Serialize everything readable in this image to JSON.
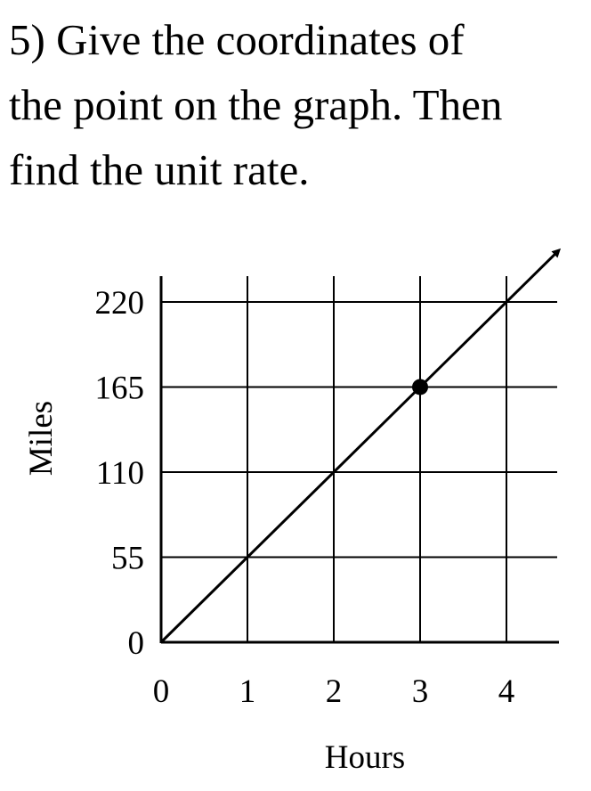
{
  "question": {
    "lines": [
      "5)  Give the coordinates of",
      "the point on the graph.  Then",
      "find the unit rate."
    ]
  },
  "chart_data": {
    "type": "line",
    "title": "",
    "xlabel": "Hours",
    "ylabel": "Miles",
    "xlim": [
      0,
      4.6
    ],
    "ylim": [
      0,
      240
    ],
    "x_ticks": [
      0,
      1,
      2,
      3,
      4
    ],
    "y_ticks": [
      0,
      55,
      110,
      165,
      220
    ],
    "grid": true,
    "series": [
      {
        "x": [
          0,
          4.6
        ],
        "y": [
          0,
          253
        ],
        "style": "solid line with arrow at end"
      }
    ],
    "highlight_point": {
      "x": 3,
      "y": 165
    }
  }
}
